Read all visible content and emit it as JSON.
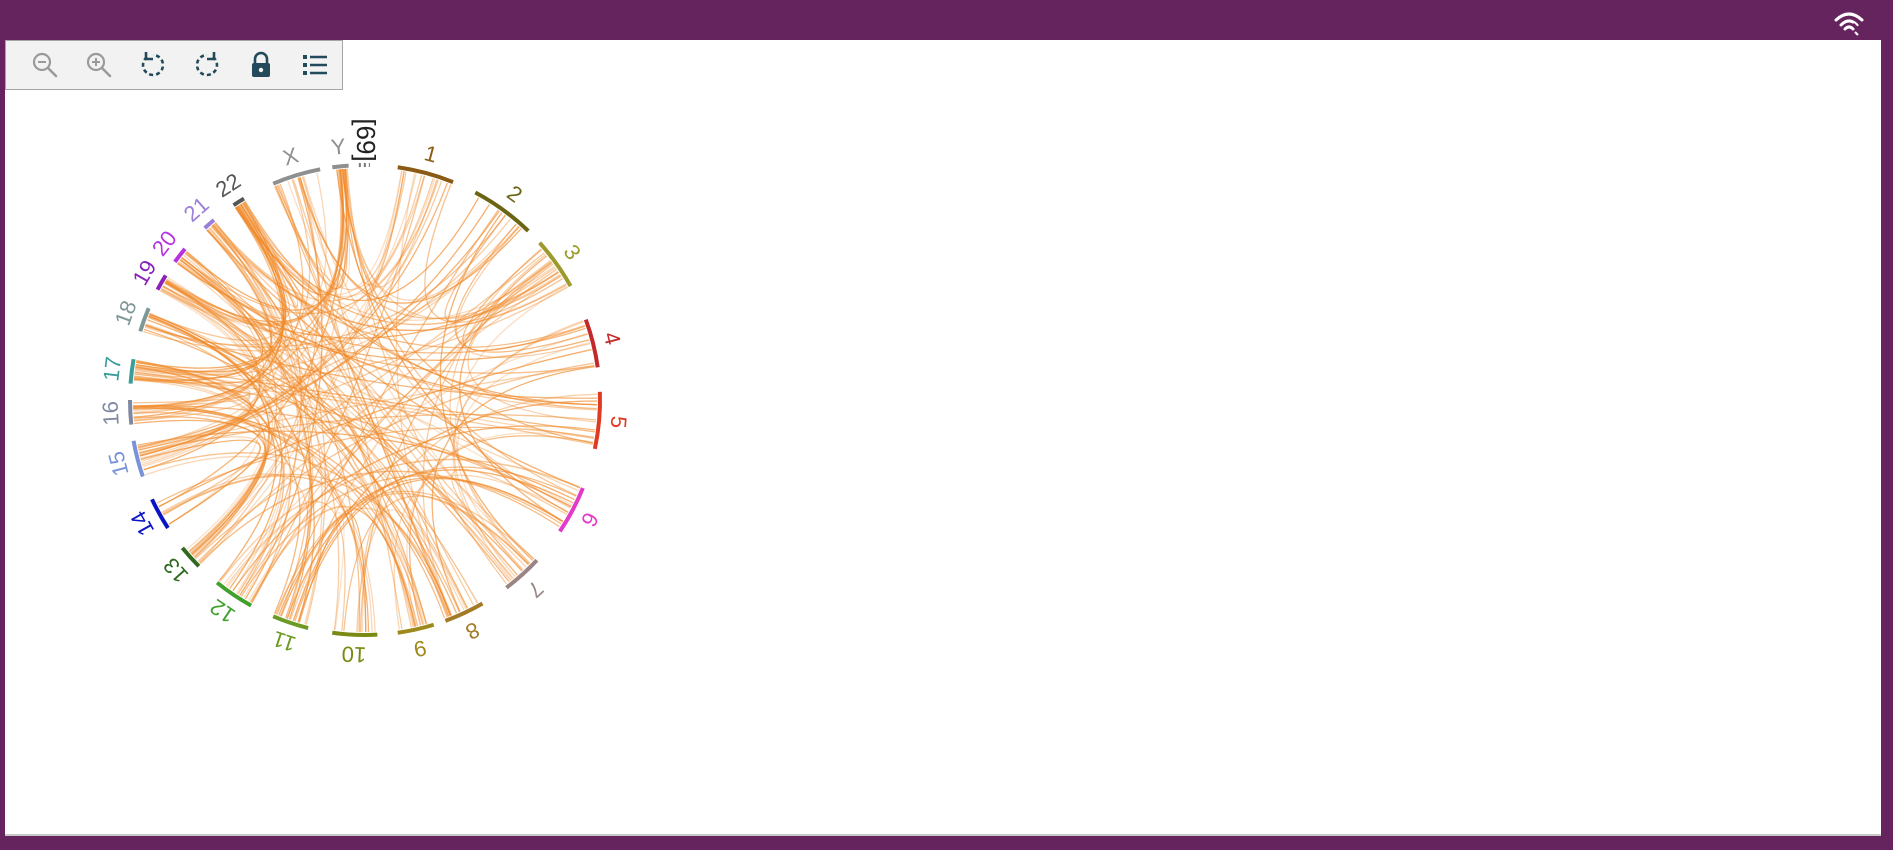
{
  "toolbar": {
    "buttons": [
      {
        "name": "zoom-out-button",
        "icon": "zoom-out-icon",
        "enabled": false
      },
      {
        "name": "zoom-in-button",
        "icon": "zoom-in-icon",
        "enabled": false
      },
      {
        "name": "rotate-left-button",
        "icon": "rotate-left-icon",
        "enabled": true
      },
      {
        "name": "rotate-right-button",
        "icon": "rotate-right-icon",
        "enabled": true
      },
      {
        "name": "lock-button",
        "icon": "lock-icon",
        "enabled": true
      },
      {
        "name": "legend-list-button",
        "icon": "list-icon",
        "enabled": true
      }
    ]
  },
  "status": {
    "icon": "wifi-icon"
  },
  "chart_data": {
    "type": "circos",
    "link_color": "#f08a2a",
    "unplaced_label": "[69]",
    "chromosomes": [
      {
        "label": "1",
        "color": "#8b5a13"
      },
      {
        "label": "2",
        "color": "#6b6513"
      },
      {
        "label": "3",
        "color": "#9c9a2c"
      },
      {
        "label": "4",
        "color": "#c42828"
      },
      {
        "label": "5",
        "color": "#e03a22"
      },
      {
        "label": "6",
        "color": "#e43ac8"
      },
      {
        "label": "7",
        "color": "#9a8585"
      },
      {
        "label": "8",
        "color": "#a37a26"
      },
      {
        "label": "9",
        "color": "#9e8a1c"
      },
      {
        "label": "10",
        "color": "#7a8a12"
      },
      {
        "label": "11",
        "color": "#6d9a22"
      },
      {
        "label": "12",
        "color": "#3fa12c"
      },
      {
        "label": "13",
        "color": "#2f6a1e"
      },
      {
        "label": "14",
        "color": "#0a14c4"
      },
      {
        "label": "15",
        "color": "#7a93d8"
      },
      {
        "label": "16",
        "color": "#7f8aa2"
      },
      {
        "label": "17",
        "color": "#3b9d9a"
      },
      {
        "label": "18",
        "color": "#7e9797"
      },
      {
        "label": "19",
        "color": "#8a22b8"
      },
      {
        "label": "20",
        "color": "#b533e0"
      },
      {
        "label": "21",
        "color": "#9a7ed8"
      },
      {
        "label": "22",
        "color": "#555555"
      },
      {
        "label": "X",
        "color": "#8f8f8f"
      },
      {
        "label": "Y",
        "color": "#8f8f8f"
      }
    ]
  }
}
